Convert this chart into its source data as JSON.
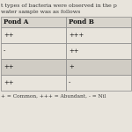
{
  "title_line1": "t types of bacteria were observed in the p",
  "title_line2": "water sample was as follows",
  "col_headers": [
    "Pond A",
    "Pond B"
  ],
  "rows": [
    [
      "++",
      "+++"
    ],
    [
      "-",
      "++"
    ],
    [
      "++",
      "+"
    ],
    [
      "++",
      "-"
    ]
  ],
  "footer": "+ = Common, +++ = Abundant, - = Nil",
  "bg_color": "#e8e4dc",
  "header_bg": "#d8d4cc",
  "row_bg_even": "#e8e4dc",
  "row_bg_alt": "#d0ccc4",
  "border_color": "#888888",
  "text_color": "#111111",
  "title_color": "#333333"
}
